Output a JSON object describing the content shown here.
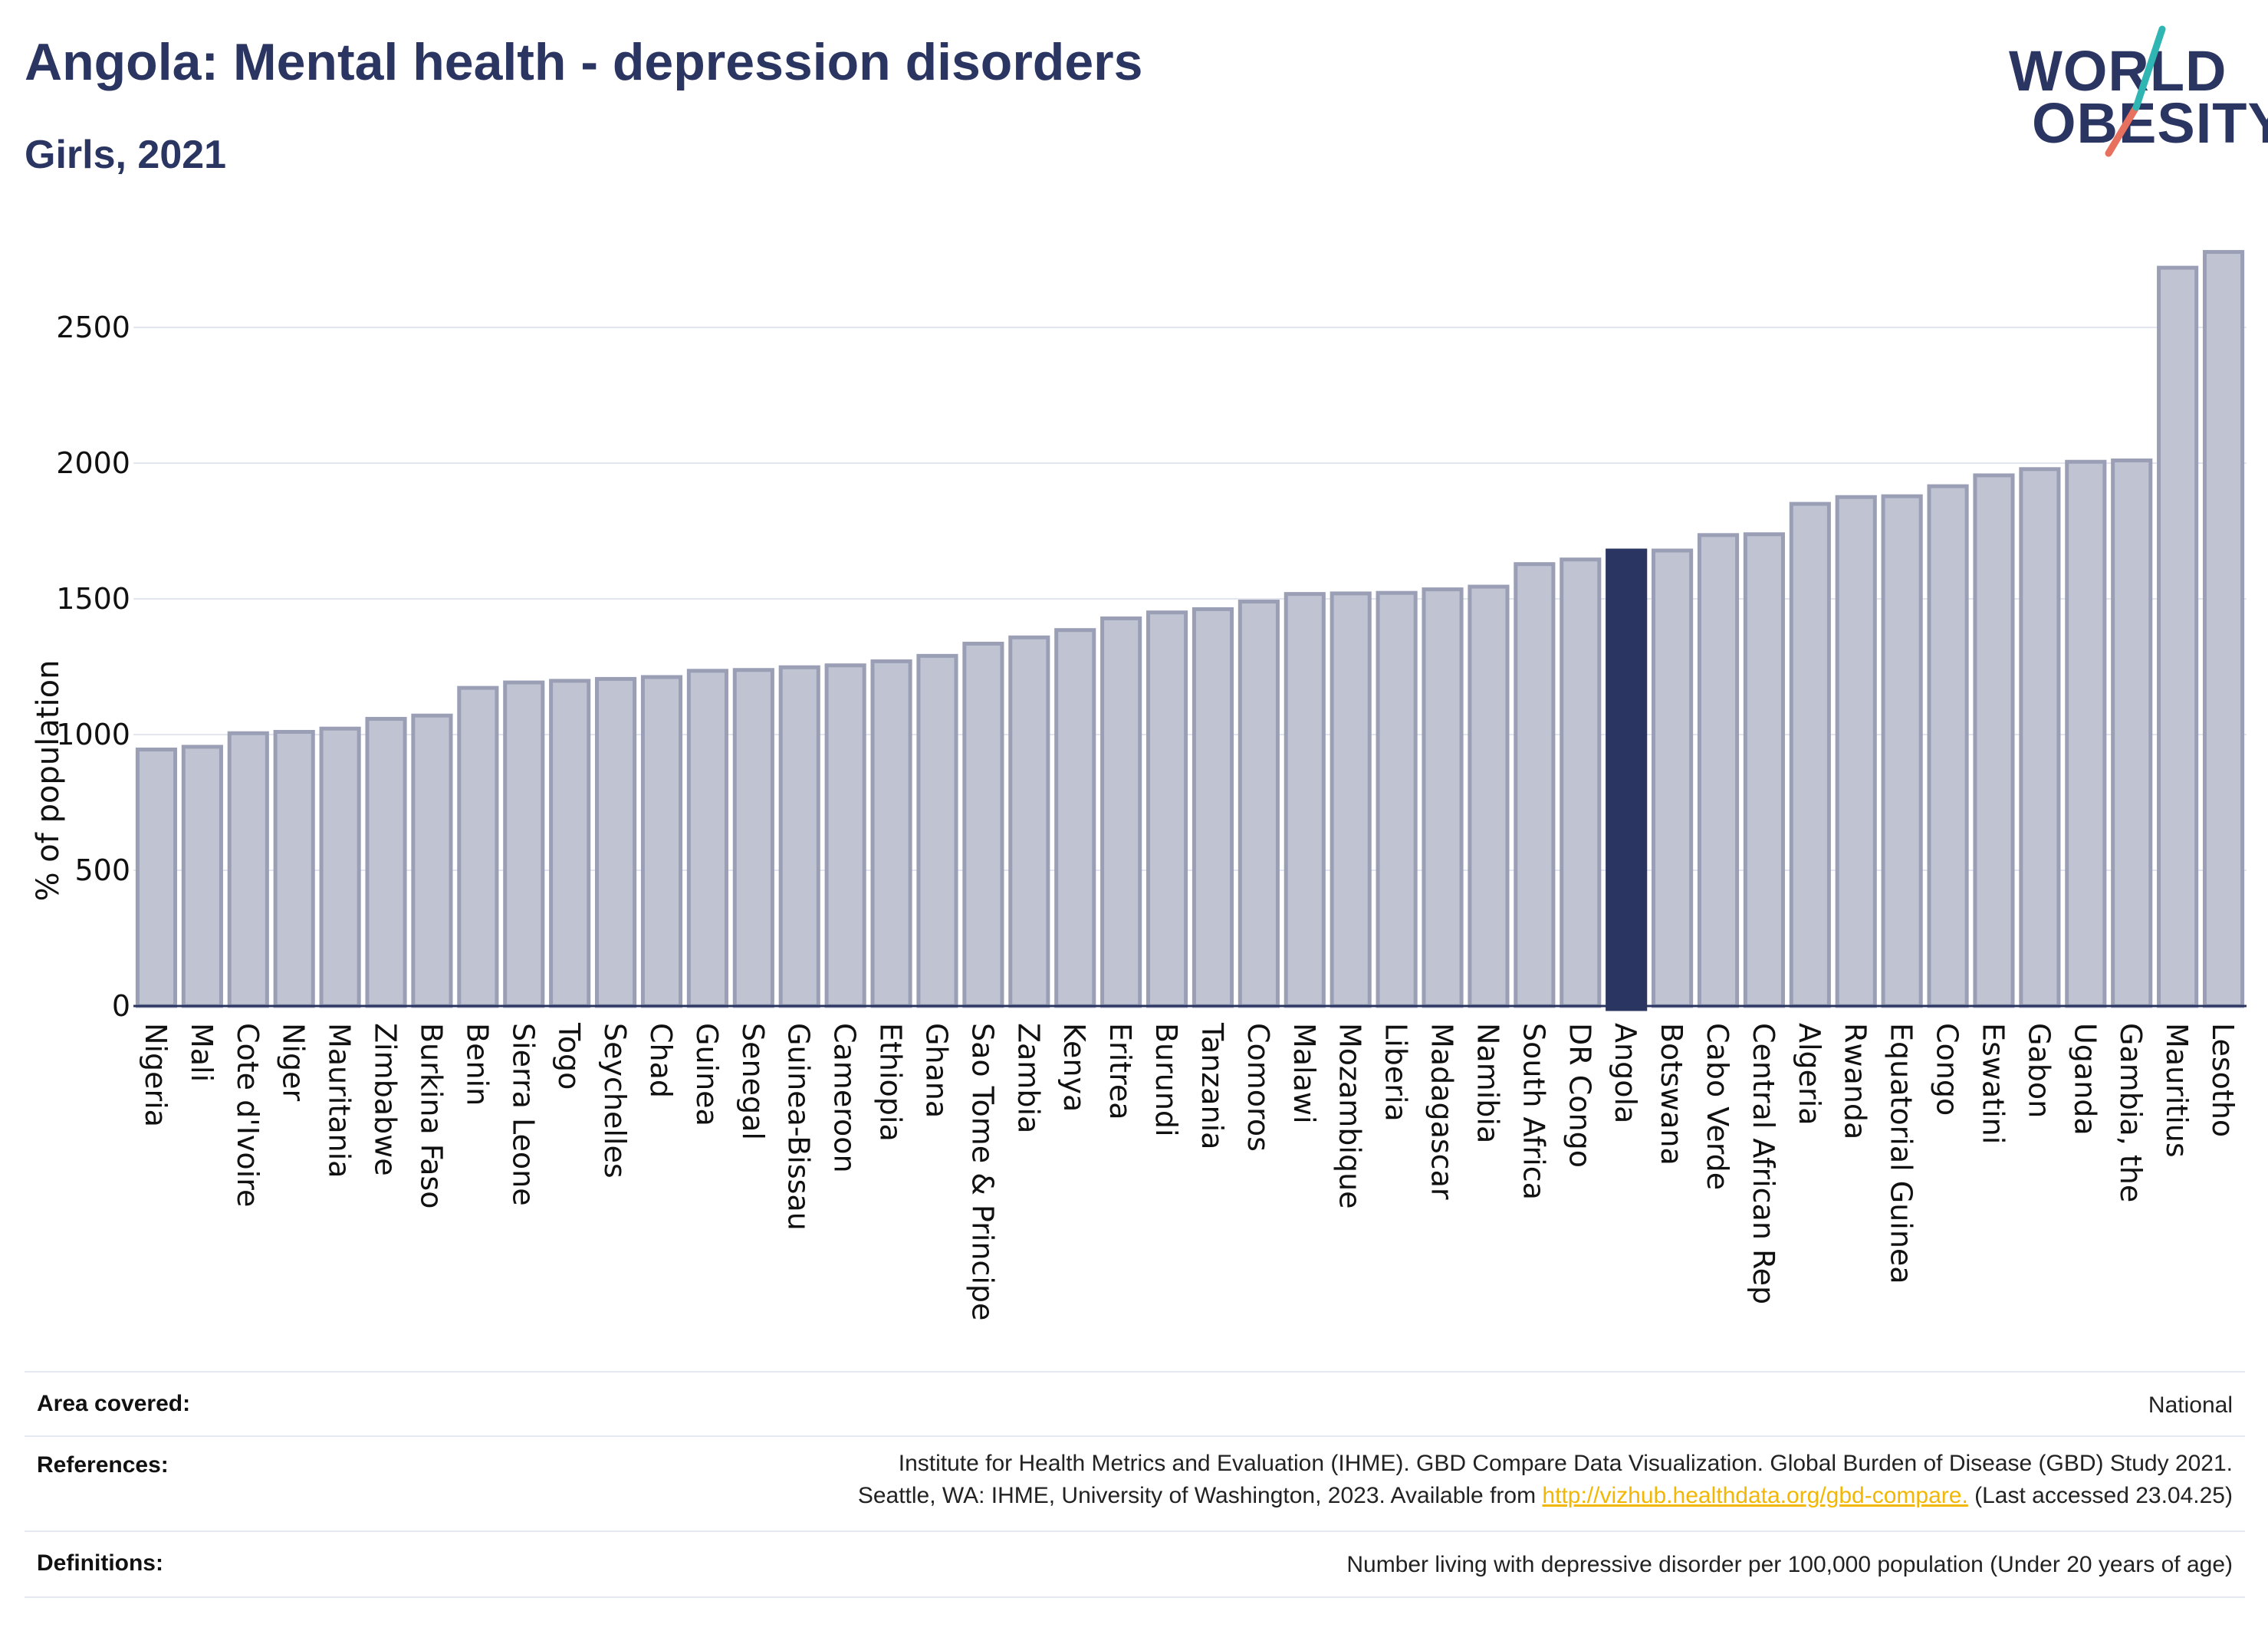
{
  "header": {
    "title": "Angola: Mental health - depression disorders",
    "subtitle": "Girls, 2021"
  },
  "logo": {
    "line1": "WORLD",
    "line2": "OBESITY",
    "accent_colors": [
      "#2fb6b3",
      "#e8705f"
    ]
  },
  "colors": {
    "bar_default": "#bfc3d2",
    "bar_stroke": "#9a9fb6",
    "bar_highlight": "#2b3561",
    "text": "#2b3561"
  },
  "chart_data": {
    "type": "bar",
    "ylabel": "% of population",
    "ylim": [
      0,
      2800
    ],
    "yticks": [
      0,
      500,
      1000,
      1500,
      2000,
      2500
    ],
    "grid": true,
    "highlight": "Angola",
    "categories": [
      "Nigeria",
      "Mali",
      "Cote d'Ivoire",
      "Niger",
      "Mauritania",
      "Zimbabwe",
      "Burkina Faso",
      "Benin",
      "Sierra Leone",
      "Togo",
      "Seychelles",
      "Chad",
      "Guinea",
      "Senegal",
      "Guinea-Bissau",
      "Cameroon",
      "Ethiopia",
      "Ghana",
      "Sao Tome & Principe",
      "Zambia",
      "Kenya",
      "Eritrea",
      "Burundi",
      "Tanzania",
      "Comoros",
      "Malawi",
      "Mozambique",
      "Liberia",
      "Madagascar",
      "Namibia",
      "South Africa",
      "DR Congo",
      "Angola",
      "Botswana",
      "Cabo Verde",
      "Central African Rep",
      "Algeria",
      "Rwanda",
      "Equatorial Guinea",
      "Congo",
      "Eswatini",
      "Gabon",
      "Uganda",
      "Gambia, the",
      "Mauritius",
      "Lesotho"
    ],
    "values": [
      945,
      955,
      1005,
      1010,
      1022,
      1058,
      1070,
      1172,
      1192,
      1198,
      1205,
      1212,
      1235,
      1238,
      1248,
      1255,
      1270,
      1290,
      1335,
      1358,
      1385,
      1428,
      1450,
      1462,
      1490,
      1518,
      1520,
      1522,
      1535,
      1545,
      1628,
      1645,
      1678,
      1678,
      1735,
      1738,
      1850,
      1875,
      1878,
      1915,
      1955,
      1978,
      2005,
      2010,
      2720,
      2778
    ]
  },
  "info": {
    "area_label": "Area covered:",
    "area_value": "National",
    "references_label": "References:",
    "references_line1": "Institute for Health Metrics and Evaluation (IHME). GBD Compare Data Visualization. Global Burden of Disease (GBD) Study 2021.",
    "references_line2_pre": "Seattle, WA: IHME, University of Washington, 2023. Available from ",
    "references_link": "http://vizhub.healthdata.org/gbd-compare.",
    "references_line2_post": " (Last accessed 23.04.25)",
    "definitions_label": "Definitions:",
    "definitions_value": "Number living with depressive disorder per 100,000 population (Under 20 years of age)"
  }
}
